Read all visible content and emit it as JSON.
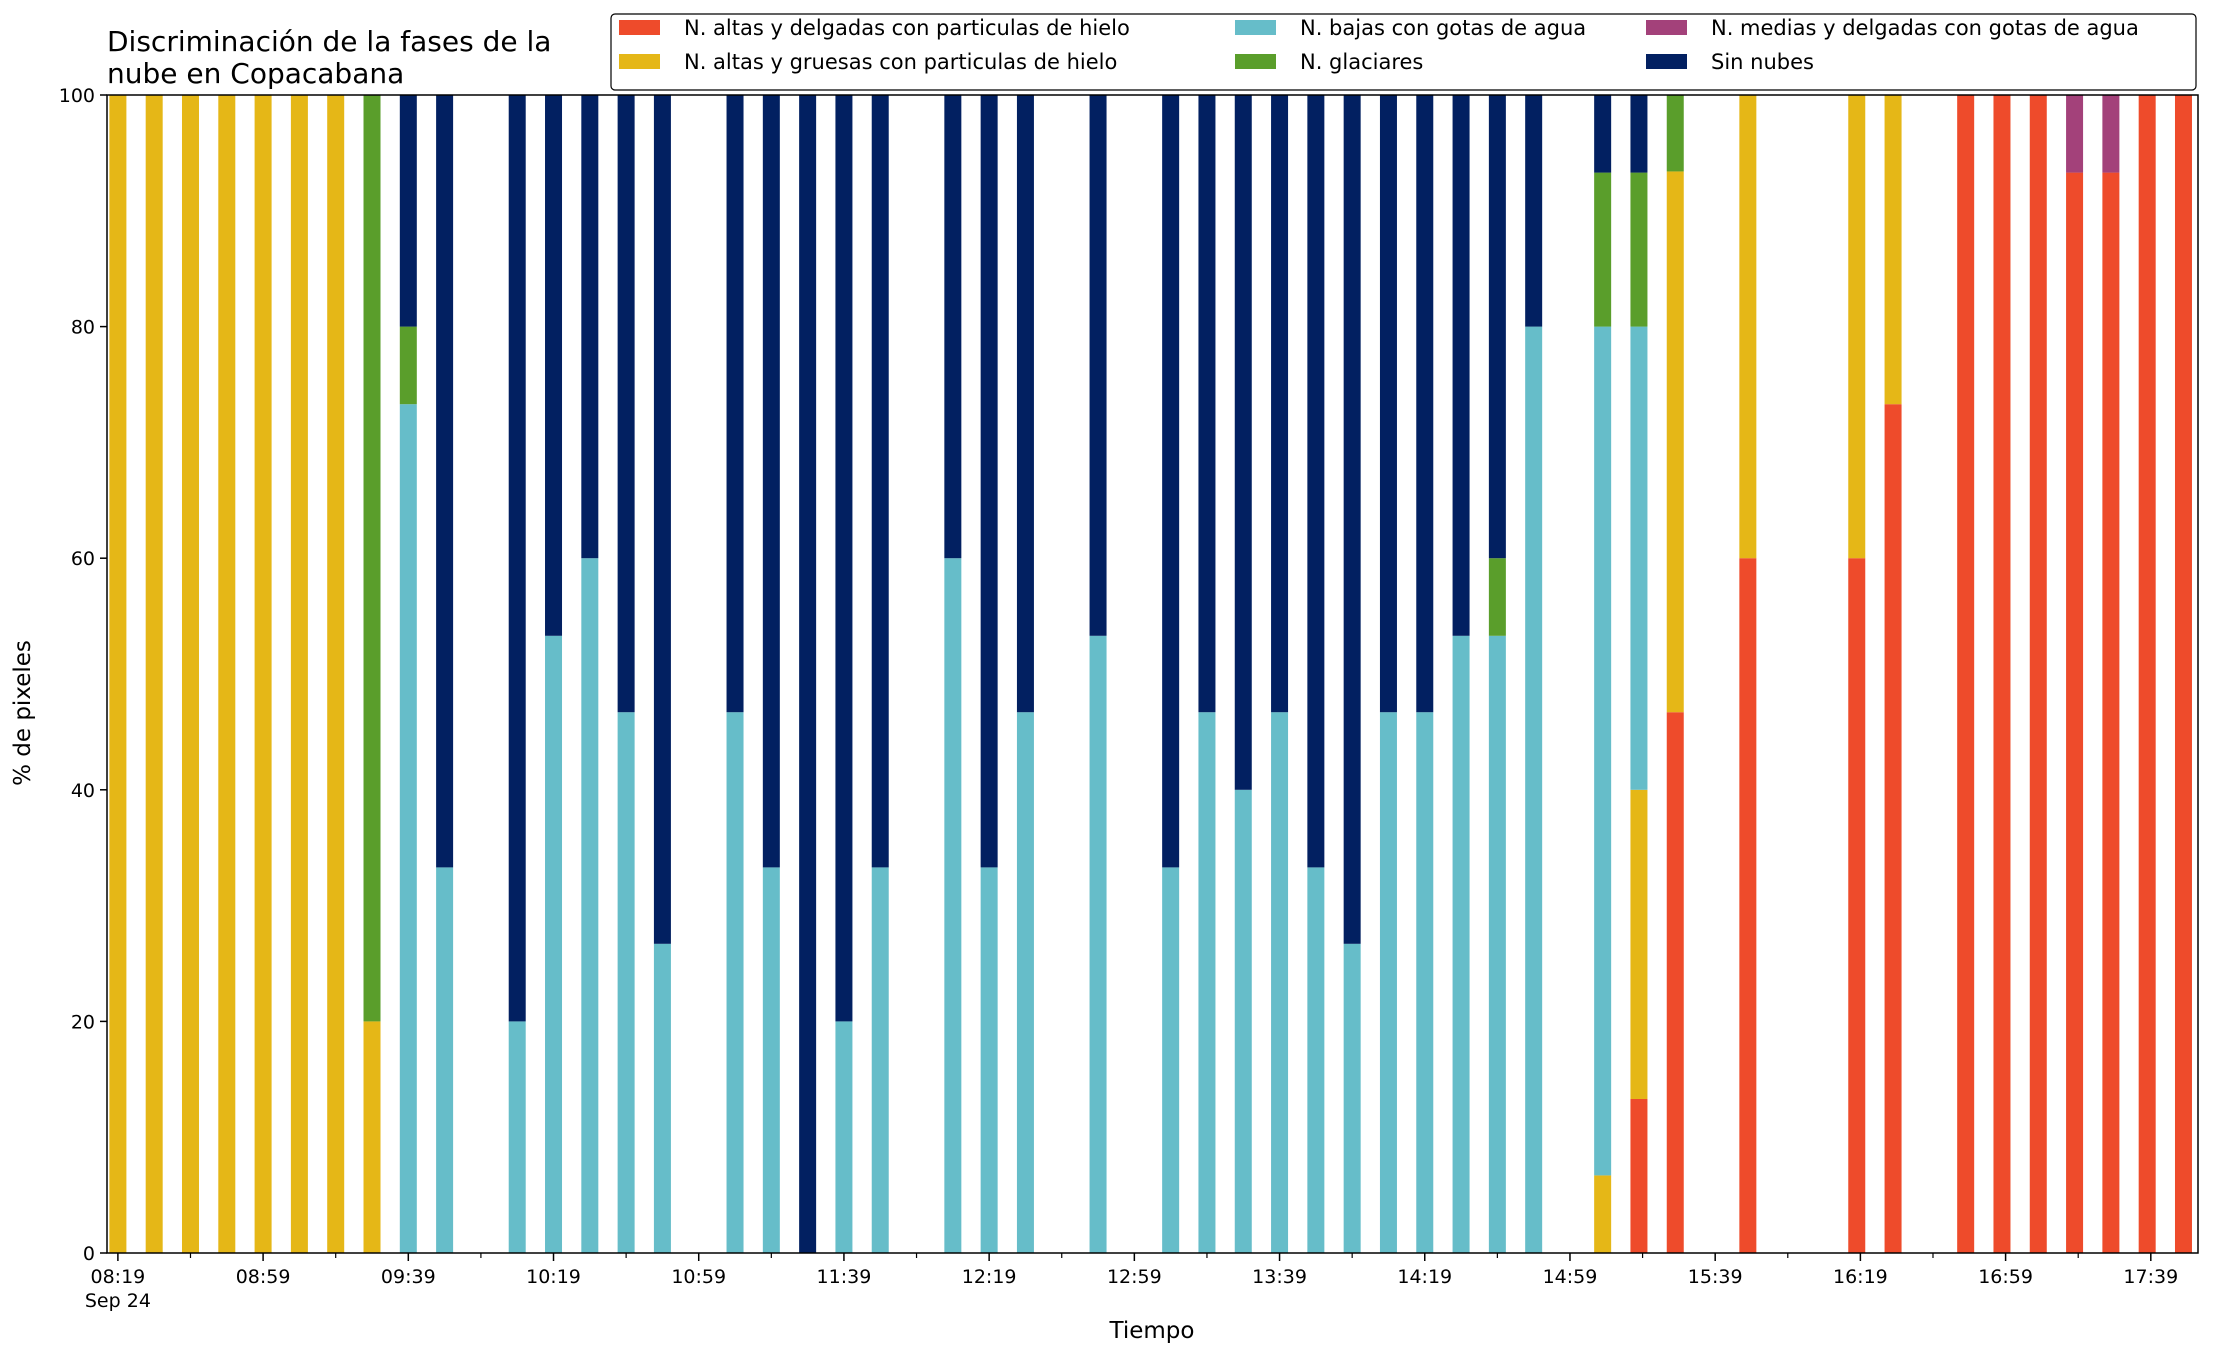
{
  "chart_data": {
    "type": "bar",
    "stacked": true,
    "title": "Discriminación de la fases de la\nnube en Copacabana",
    "xlabel": "Tiempo",
    "ylabel": "% de pixeles",
    "ylim": [
      0,
      100
    ],
    "yticks": [
      0,
      20,
      40,
      60,
      80,
      100
    ],
    "xlim_minutes": [
      496,
      1072
    ],
    "xticks": [
      {
        "label": "08:19",
        "sublabel": "Sep 24",
        "minute": 499
      },
      {
        "label": "08:59",
        "minute": 539
      },
      {
        "label": "09:39",
        "minute": 579
      },
      {
        "label": "10:19",
        "minute": 619
      },
      {
        "label": "10:59",
        "minute": 659
      },
      {
        "label": "11:39",
        "minute": 699
      },
      {
        "label": "12:19",
        "minute": 739
      },
      {
        "label": "12:59",
        "minute": 779
      },
      {
        "label": "13:39",
        "minute": 819
      },
      {
        "label": "14:19",
        "minute": 859
      },
      {
        "label": "14:59",
        "minute": 899
      },
      {
        "label": "15:39",
        "minute": 939
      },
      {
        "label": "16:19",
        "minute": 979
      },
      {
        "label": "16:59",
        "minute": 1019
      },
      {
        "label": "17:39",
        "minute": 1059
      }
    ],
    "legend_position": "top",
    "grid": false,
    "series": [
      {
        "name": "N. altas y delgadas con particulas de hielo",
        "color": "#ee4b2b"
      },
      {
        "name": "N. altas y gruesas con particulas de hielo",
        "color": "#e5b717"
      },
      {
        "name": "N. bajas con gotas de agua",
        "color": "#66bdc9"
      },
      {
        "name": "N. glaciares",
        "color": "#5a9e2b"
      },
      {
        "name": "N. medias y delgadas con gotas de agua",
        "color": "#a3417a"
      },
      {
        "name": "Sin nubes",
        "color": "#022061"
      }
    ],
    "time_unit": "minutes since 00:00, Sep 24",
    "bars": [
      {
        "t": 499,
        "v": [
          0,
          100,
          0,
          0,
          0,
          0
        ]
      },
      {
        "t": 509,
        "v": [
          0,
          100,
          0,
          0,
          0,
          0
        ]
      },
      {
        "t": 519,
        "v": [
          0,
          100,
          0,
          0,
          0,
          0
        ]
      },
      {
        "t": 529,
        "v": [
          0,
          100,
          0,
          0,
          0,
          0
        ]
      },
      {
        "t": 539,
        "v": [
          0,
          100,
          0,
          0,
          0,
          0
        ]
      },
      {
        "t": 549,
        "v": [
          0,
          100,
          0,
          0,
          0,
          0
        ]
      },
      {
        "t": 559,
        "v": [
          0,
          100,
          0,
          0,
          0,
          0
        ]
      },
      {
        "t": 569,
        "v": [
          0,
          20,
          0,
          80,
          0,
          0
        ]
      },
      {
        "t": 579,
        "v": [
          0,
          0,
          73.3,
          6.7,
          0,
          20
        ]
      },
      {
        "t": 589,
        "v": [
          0,
          0,
          33.3,
          0,
          0,
          66.7
        ]
      },
      {
        "t": 609,
        "v": [
          0,
          0,
          20,
          0,
          0,
          80
        ]
      },
      {
        "t": 619,
        "v": [
          0,
          0,
          53.3,
          0,
          0,
          46.7
        ]
      },
      {
        "t": 629,
        "v": [
          0,
          0,
          60,
          0,
          0,
          40
        ]
      },
      {
        "t": 639,
        "v": [
          0,
          0,
          46.7,
          0,
          0,
          53.3
        ]
      },
      {
        "t": 649,
        "v": [
          0,
          0,
          26.7,
          0,
          0,
          73.3
        ]
      },
      {
        "t": 669,
        "v": [
          0,
          0,
          46.7,
          0,
          0,
          53.3
        ]
      },
      {
        "t": 679,
        "v": [
          0,
          0,
          33.3,
          0,
          0,
          66.7
        ]
      },
      {
        "t": 689,
        "v": [
          0,
          0,
          0,
          0,
          0,
          100
        ]
      },
      {
        "t": 699,
        "v": [
          0,
          0,
          20,
          0,
          0,
          80
        ]
      },
      {
        "t": 709,
        "v": [
          0,
          0,
          33.3,
          0,
          0,
          66.7
        ]
      },
      {
        "t": 729,
        "v": [
          0,
          0,
          60,
          0,
          0,
          40
        ]
      },
      {
        "t": 739,
        "v": [
          0,
          0,
          33.3,
          0,
          0,
          66.7
        ]
      },
      {
        "t": 749,
        "v": [
          0,
          0,
          46.7,
          0,
          0,
          53.3
        ]
      },
      {
        "t": 769,
        "v": [
          0,
          0,
          53.3,
          0,
          0,
          46.7
        ]
      },
      {
        "t": 789,
        "v": [
          0,
          0,
          33.3,
          0,
          0,
          66.7
        ]
      },
      {
        "t": 799,
        "v": [
          0,
          0,
          46.7,
          0,
          0,
          53.3
        ]
      },
      {
        "t": 809,
        "v": [
          0,
          0,
          40,
          0,
          0,
          60
        ]
      },
      {
        "t": 819,
        "v": [
          0,
          0,
          46.7,
          0,
          0,
          53.3
        ]
      },
      {
        "t": 829,
        "v": [
          0,
          0,
          33.3,
          0,
          0,
          66.7
        ]
      },
      {
        "t": 839,
        "v": [
          0,
          0,
          26.7,
          0,
          0,
          73.3
        ]
      },
      {
        "t": 849,
        "v": [
          0,
          0,
          46.7,
          0,
          0,
          53.3
        ]
      },
      {
        "t": 859,
        "v": [
          0,
          0,
          46.7,
          0,
          0,
          53.3
        ]
      },
      {
        "t": 869,
        "v": [
          0,
          0,
          53.3,
          0,
          0,
          46.7
        ]
      },
      {
        "t": 879,
        "v": [
          0,
          0,
          53.3,
          6.7,
          0,
          40
        ]
      },
      {
        "t": 889,
        "v": [
          0,
          0,
          80,
          0,
          0,
          20
        ]
      },
      {
        "t": 908,
        "v": [
          0,
          6.7,
          73.3,
          13.3,
          0,
          6.7
        ]
      },
      {
        "t": 918,
        "v": [
          13.3,
          26.7,
          40,
          13.3,
          0,
          6.7
        ]
      },
      {
        "t": 928,
        "v": [
          46.7,
          46.7,
          0,
          6.6,
          0,
          0
        ]
      },
      {
        "t": 948,
        "v": [
          60,
          40,
          0,
          0,
          0,
          0
        ]
      },
      {
        "t": 978,
        "v": [
          60,
          40,
          0,
          0,
          0,
          0
        ]
      },
      {
        "t": 988,
        "v": [
          73.3,
          26.7,
          0,
          0,
          0,
          0
        ]
      },
      {
        "t": 1008,
        "v": [
          100,
          0,
          0,
          0,
          0,
          0
        ]
      },
      {
        "t": 1018,
        "v": [
          100,
          0,
          0,
          0,
          0,
          0
        ]
      },
      {
        "t": 1028,
        "v": [
          100,
          0,
          0,
          0,
          0,
          0
        ]
      },
      {
        "t": 1038,
        "v": [
          93.3,
          0,
          0,
          0,
          6.7,
          0
        ]
      },
      {
        "t": 1048,
        "v": [
          93.3,
          0,
          0,
          0,
          6.7,
          0
        ]
      },
      {
        "t": 1058,
        "v": [
          100,
          0,
          0,
          0,
          0,
          0
        ]
      },
      {
        "t": 1068,
        "v": [
          100,
          0,
          0,
          0,
          0,
          0
        ]
      }
    ]
  }
}
